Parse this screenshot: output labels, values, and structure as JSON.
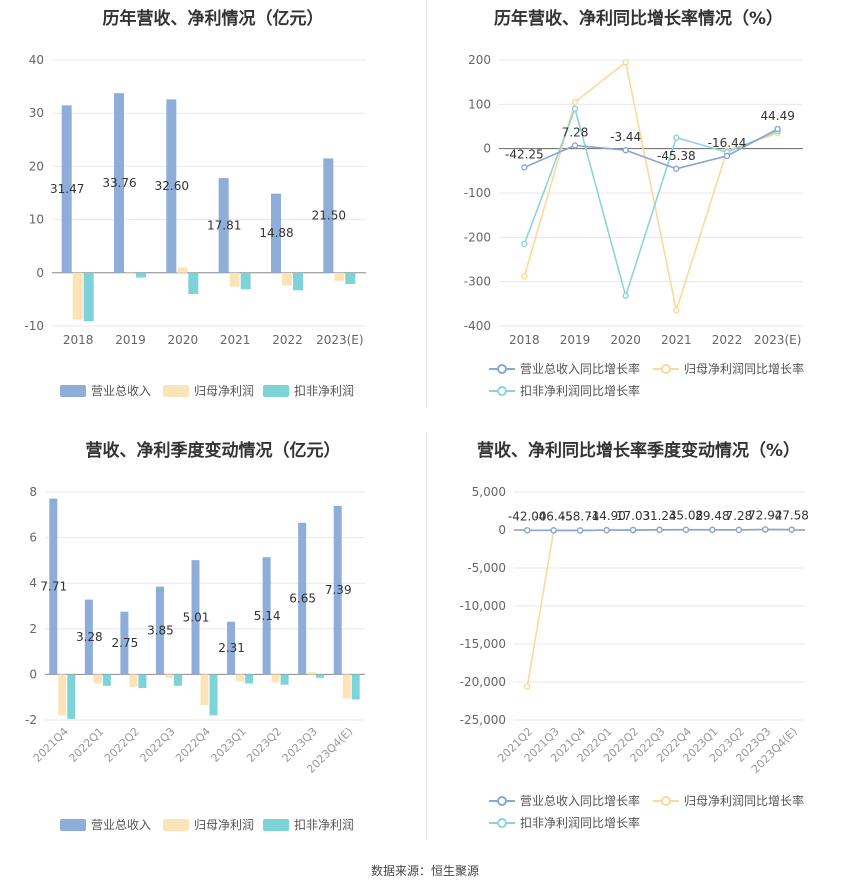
{
  "footer": {
    "source": "数据来源：恒生聚源"
  },
  "colors": {
    "revenue": "#8eadd8",
    "net_profit": "#fde4b8",
    "deducted_profit": "#7dd4d8",
    "rev_growth": "#8ba5d4",
    "np_growth": "#fcd99a",
    "dp_growth": "#8ed4d8"
  },
  "chart_data": [
    {
      "type": "bar",
      "title": "历年营收、净利情况（亿元）",
      "categories": [
        "2018",
        "2019",
        "2020",
        "2021",
        "2022",
        "2023(E)"
      ],
      "series": [
        {
          "name": "营业总收入",
          "values": [
            31.47,
            33.76,
            32.6,
            17.81,
            14.88,
            21.5
          ]
        },
        {
          "name": "归母净利润",
          "values": [
            -8.8,
            -0.3,
            1.0,
            -2.6,
            -2.4,
            -1.5
          ]
        },
        {
          "name": "扣非净利润",
          "values": [
            -9.1,
            -0.9,
            -4.0,
            -3.1,
            -3.3,
            -2.1
          ]
        }
      ],
      "data_labels": [
        "31.47",
        "33.76",
        "32.60",
        "17.81",
        "14.88",
        "21.50"
      ],
      "yticks": [
        "40",
        "30",
        "20",
        "10",
        "0",
        "-10"
      ],
      "ylim": [
        -10,
        40
      ]
    },
    {
      "type": "line",
      "title": "历年营收、净利同比增长率情况（%）",
      "categories": [
        "2018",
        "2019",
        "2020",
        "2021",
        "2022",
        "2023(E)"
      ],
      "series": [
        {
          "name": "营业总收入同比增长率",
          "values": [
            -42.25,
            7.28,
            -3.44,
            -45.38,
            -16.44,
            44.49
          ]
        },
        {
          "name": "归母净利润同比增长率",
          "values": [
            -288,
            105,
            195,
            -365,
            -5,
            35
          ]
        },
        {
          "name": "扣非净利润同比增长率",
          "values": [
            -215,
            90,
            -332,
            25,
            -8,
            40
          ]
        }
      ],
      "data_labels": [
        "-42.25",
        "7.28",
        "-3.44",
        "-45.38",
        "-16.44",
        "44.49"
      ],
      "yticks": [
        "200",
        "100",
        "0",
        "-100",
        "-200",
        "-300",
        "-400"
      ],
      "ylim": [
        -400,
        200
      ]
    },
    {
      "type": "bar",
      "title": "营收、净利季度变动情况（亿元）",
      "categories": [
        "2021Q4",
        "2022Q1",
        "2022Q2",
        "2022Q3",
        "2022Q4",
        "2023Q1",
        "2023Q2",
        "2023Q3",
        "2023Q4(E)"
      ],
      "series": [
        {
          "name": "营业总收入",
          "values": [
            7.71,
            3.28,
            2.75,
            3.85,
            5.01,
            2.31,
            5.14,
            6.65,
            7.39
          ]
        },
        {
          "name": "归母净利润",
          "values": [
            -1.8,
            -0.4,
            -0.55,
            -0.15,
            -1.35,
            -0.3,
            -0.35,
            0.1,
            -1.05
          ]
        },
        {
          "name": "扣非净利润",
          "values": [
            -1.95,
            -0.5,
            -0.6,
            -0.5,
            -1.8,
            -0.4,
            -0.45,
            -0.15,
            -1.1
          ]
        }
      ],
      "data_labels": [
        "7.71",
        "3.28",
        "2.75",
        "3.85",
        "5.01",
        "2.31",
        "5.14",
        "6.65",
        "7.39"
      ],
      "yticks": [
        "8",
        "6",
        "4",
        "2",
        "0",
        "-2"
      ],
      "ylim": [
        -2,
        8
      ]
    },
    {
      "type": "line",
      "title": "营收、净利同比增长率季度变动情况（%）",
      "categories": [
        "2021Q2",
        "2021Q3",
        "2021Q4",
        "2022Q1",
        "2022Q2",
        "2022Q3",
        "2022Q4",
        "2023Q1",
        "2023Q2",
        "2023Q3",
        "2023Q4(E)"
      ],
      "series": [
        {
          "name": "营业总收入同比增长率",
          "values": [
            -42.0,
            -46.45,
            -58.74,
            -14.9,
            17.03,
            31.24,
            35.08,
            29.48,
            7.28,
            72.92,
            47.58
          ]
        },
        {
          "name": "归母净利润同比增长率",
          "values": [
            -20600,
            -80,
            -60,
            -20,
            -50,
            30,
            40,
            30,
            20,
            60,
            50
          ]
        },
        {
          "name": "扣非净利润同比增长率",
          "values": [
            -50,
            -40,
            -60,
            -20,
            -40,
            20,
            30,
            25,
            15,
            50,
            40
          ]
        }
      ],
      "data_labels": [
        "-42.00",
        "-46.45",
        "-58.74",
        "-14.90",
        "17.03",
        "31.24",
        "35.08",
        "29.48",
        "7.28",
        "72.92",
        "47.58"
      ],
      "yticks": [
        "5,000",
        "0",
        "-5,000",
        "-10,000",
        "-15,000",
        "-20,000",
        "-25,000"
      ],
      "ylim": [
        -25000,
        5000
      ]
    }
  ]
}
